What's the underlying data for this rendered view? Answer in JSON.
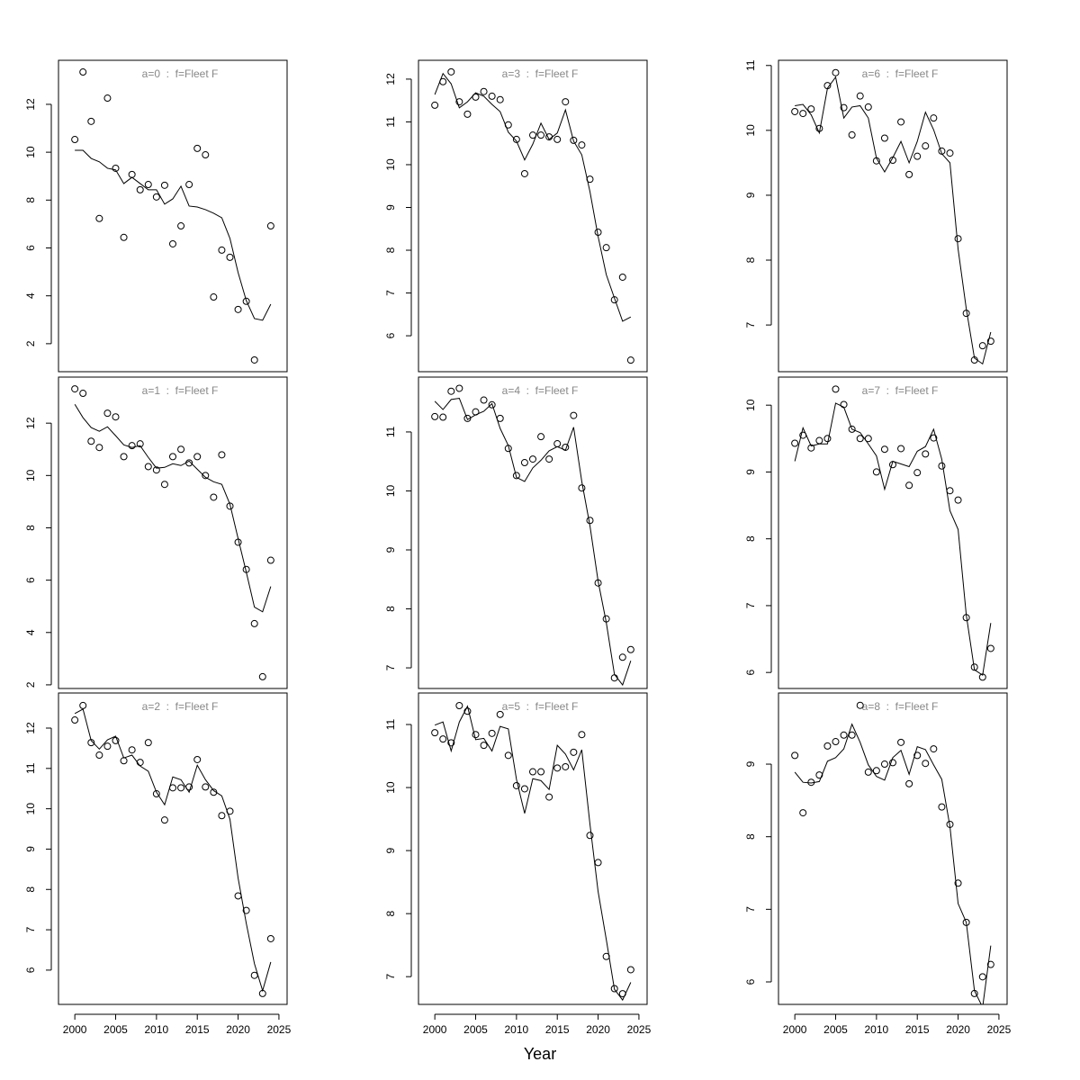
{
  "xlabel": "Year",
  "chart_data": [
    {
      "type": "line",
      "title": "a=0  :  f=Fleet F",
      "xlim": [
        1998,
        2026
      ],
      "ylim": [
        0.83,
        13.84
      ],
      "yticks": [
        2,
        4,
        6,
        8,
        10,
        12
      ],
      "x": [
        2000,
        2001,
        2002,
        2003,
        2004,
        2005,
        2006,
        2007,
        2008,
        2009,
        2010,
        2011,
        2012,
        2013,
        2014,
        2015,
        2016,
        2017,
        2018,
        2019,
        2020,
        2021,
        2022,
        2023,
        2024
      ],
      "series": [
        {
          "marker": "circle",
          "color": "#000000",
          "values": [
            10.53,
            13.35,
            11.29,
            7.23,
            12.26,
            9.33,
            6.44,
            9.07,
            8.43,
            8.65,
            8.13,
            8.62,
            6.17,
            6.92,
            8.65,
            10.16,
            9.89,
            3.95,
            5.91,
            5.61,
            3.43,
            3.77,
            1.32,
            null,
            6.92
          ]
        },
        {
          "marker": "none",
          "color": "#000000",
          "values": [
            10.08,
            10.08,
            9.74,
            9.6,
            9.33,
            9.26,
            8.69,
            8.95,
            8.69,
            8.43,
            8.43,
            7.83,
            8.05,
            8.58,
            7.75,
            7.71,
            7.6,
            7.45,
            7.26,
            6.4,
            4.97,
            3.8,
            3.05,
            2.98,
            3.65
          ]
        }
      ]
    },
    {
      "type": "line",
      "title": "a=1  :  f=Fleet F",
      "xlim": [
        1998,
        2026
      ],
      "ylim": [
        1.86,
        13.76
      ],
      "yticks": [
        2,
        4,
        6,
        8,
        10,
        12
      ],
      "x": [
        2000,
        2001,
        2002,
        2003,
        2004,
        2005,
        2006,
        2007,
        2008,
        2009,
        2010,
        2011,
        2012,
        2013,
        2014,
        2015,
        2016,
        2017,
        2018,
        2019,
        2020,
        2021,
        2022,
        2023,
        2024
      ],
      "series": [
        {
          "marker": "circle",
          "color": "#000000",
          "values": [
            13.31,
            13.14,
            11.31,
            11.07,
            12.38,
            12.24,
            10.72,
            11.14,
            11.21,
            10.34,
            10.21,
            9.66,
            10.72,
            11.0,
            10.48,
            10.72,
            10.0,
            9.17,
            10.79,
            8.83,
            7.45,
            6.41,
            4.34,
            2.31,
            6.76
          ]
        },
        {
          "marker": "none",
          "color": "#000000",
          "values": [
            12.72,
            12.21,
            11.83,
            11.69,
            11.86,
            11.52,
            11.17,
            11.07,
            11.14,
            10.69,
            10.28,
            10.31,
            10.45,
            10.38,
            10.55,
            10.24,
            9.93,
            9.76,
            9.66,
            8.9,
            7.59,
            6.31,
            4.97,
            4.79,
            5.76
          ]
        }
      ]
    },
    {
      "type": "line",
      "title": "a=2  :  f=Fleet F",
      "xlim": [
        1998,
        2026
      ],
      "ylim": [
        5.15,
        12.87
      ],
      "yticks": [
        6,
        7,
        8,
        9,
        10,
        11,
        12
      ],
      "xticks": [
        2000,
        2005,
        2010,
        2015,
        2020,
        2025
      ],
      "x": [
        2000,
        2001,
        2002,
        2003,
        2004,
        2005,
        2006,
        2007,
        2008,
        2009,
        2010,
        2011,
        2012,
        2013,
        2014,
        2015,
        2016,
        2017,
        2018,
        2019,
        2020,
        2021,
        2022,
        2023,
        2024
      ],
      "series": [
        {
          "marker": "circle",
          "color": "#000000",
          "values": [
            12.2,
            12.56,
            11.64,
            11.33,
            11.55,
            11.69,
            11.19,
            11.46,
            11.15,
            11.64,
            10.37,
            9.72,
            10.52,
            10.52,
            10.54,
            11.22,
            10.54,
            10.41,
            9.83,
            9.94,
            7.84,
            7.48,
            5.87,
            5.42,
            6.78
          ]
        },
        {
          "marker": "none",
          "color": "#000000",
          "values": [
            12.36,
            12.47,
            11.69,
            11.48,
            11.71,
            11.8,
            11.26,
            11.33,
            11.06,
            10.93,
            10.41,
            10.1,
            10.79,
            10.72,
            10.41,
            11.08,
            10.72,
            10.45,
            10.32,
            9.74,
            8.28,
            7.16,
            6.16,
            5.49,
            6.2
          ]
        }
      ]
    },
    {
      "type": "line",
      "title": "a=3  :  f=Fleet F",
      "xlim": [
        1998,
        2026
      ],
      "ylim": [
        5.16,
        12.44
      ],
      "yticks": [
        6,
        7,
        8,
        9,
        10,
        11,
        12
      ],
      "x": [
        2000,
        2001,
        2002,
        2003,
        2004,
        2005,
        2006,
        2007,
        2008,
        2009,
        2010,
        2011,
        2012,
        2013,
        2014,
        2015,
        2016,
        2017,
        2018,
        2019,
        2020,
        2021,
        2022,
        2023,
        2024
      ],
      "series": [
        {
          "marker": "circle",
          "color": "#000000",
          "values": [
            11.39,
            11.94,
            12.17,
            11.47,
            11.18,
            11.58,
            11.71,
            11.6,
            11.52,
            10.93,
            10.59,
            9.79,
            10.69,
            10.69,
            10.65,
            10.59,
            11.47,
            10.57,
            10.46,
            9.66,
            8.42,
            8.06,
            6.84,
            7.37,
            5.43
          ]
        },
        {
          "marker": "none",
          "color": "#000000",
          "values": [
            11.64,
            12.13,
            11.89,
            11.33,
            11.47,
            11.68,
            11.6,
            11.41,
            11.24,
            10.76,
            10.55,
            10.11,
            10.48,
            10.97,
            10.59,
            10.74,
            11.28,
            10.55,
            10.23,
            9.37,
            8.32,
            7.43,
            6.88,
            6.34,
            6.44
          ]
        }
      ]
    },
    {
      "type": "line",
      "title": "a=4  :  f=Fleet F",
      "xlim": [
        1998,
        2026
      ],
      "ylim": [
        6.65,
        11.93
      ],
      "yticks": [
        7,
        8,
        9,
        10,
        11
      ],
      "x": [
        2000,
        2001,
        2002,
        2003,
        2004,
        2005,
        2006,
        2007,
        2008,
        2009,
        2010,
        2011,
        2012,
        2013,
        2014,
        2015,
        2016,
        2017,
        2018,
        2019,
        2020,
        2021,
        2022,
        2023,
        2024
      ],
      "series": [
        {
          "marker": "circle",
          "color": "#000000",
          "values": [
            11.26,
            11.25,
            11.69,
            11.74,
            11.23,
            11.34,
            11.54,
            11.46,
            11.23,
            10.72,
            10.26,
            10.48,
            10.54,
            10.92,
            10.54,
            10.8,
            10.74,
            11.28,
            10.05,
            9.5,
            8.44,
            7.83,
            6.83,
            7.18,
            7.31
          ]
        },
        {
          "marker": "none",
          "color": "#000000",
          "values": [
            11.52,
            11.38,
            11.55,
            11.57,
            11.21,
            11.29,
            11.35,
            11.48,
            11.06,
            10.77,
            10.23,
            10.16,
            10.39,
            10.52,
            10.68,
            10.75,
            10.69,
            11.08,
            10.16,
            9.41,
            8.47,
            7.77,
            6.89,
            6.71,
            7.12
          ]
        }
      ]
    },
    {
      "type": "line",
      "title": "a=5  :  f=Fleet F",
      "xlim": [
        1998,
        2026
      ],
      "ylim": [
        6.56,
        11.5
      ],
      "yticks": [
        7,
        8,
        9,
        10,
        11
      ],
      "xticks": [
        2000,
        2005,
        2010,
        2015,
        2020,
        2025
      ],
      "x": [
        2000,
        2001,
        2002,
        2003,
        2004,
        2005,
        2006,
        2007,
        2008,
        2009,
        2010,
        2011,
        2012,
        2013,
        2014,
        2015,
        2016,
        2017,
        2018,
        2019,
        2020,
        2021,
        2022,
        2023,
        2024
      ],
      "series": [
        {
          "marker": "circle",
          "color": "#000000",
          "values": [
            10.87,
            10.77,
            10.71,
            11.3,
            11.21,
            10.84,
            10.67,
            10.86,
            11.16,
            10.51,
            10.03,
            9.98,
            10.25,
            10.25,
            9.85,
            10.31,
            10.33,
            10.56,
            10.84,
            9.24,
            8.81,
            7.32,
            6.81,
            6.73,
            7.11
          ]
        },
        {
          "marker": "none",
          "color": "#000000",
          "values": [
            10.99,
            11.04,
            10.58,
            11.04,
            11.29,
            10.76,
            10.78,
            10.58,
            10.97,
            10.93,
            10.13,
            9.59,
            10.14,
            10.11,
            9.97,
            10.67,
            10.53,
            10.28,
            10.6,
            9.42,
            8.35,
            7.59,
            6.8,
            6.63,
            6.91
          ]
        }
      ]
    },
    {
      "type": "line",
      "title": "a=6  :  f=Fleet F",
      "xlim": [
        1998,
        2026
      ],
      "ylim": [
        6.28,
        11.08
      ],
      "yticks": [
        7,
        8,
        9,
        10,
        11
      ],
      "x": [
        2000,
        2001,
        2002,
        2003,
        2004,
        2005,
        2006,
        2007,
        2008,
        2009,
        2010,
        2011,
        2012,
        2013,
        2014,
        2015,
        2016,
        2017,
        2018,
        2019,
        2020,
        2021,
        2022,
        2023,
        2024
      ],
      "series": [
        {
          "marker": "circle",
          "color": "#000000",
          "values": [
            10.29,
            10.26,
            10.33,
            10.03,
            10.69,
            10.89,
            10.35,
            9.93,
            10.53,
            10.36,
            9.53,
            9.88,
            9.54,
            10.13,
            9.32,
            9.6,
            9.76,
            10.19,
            9.68,
            9.65,
            8.33,
            7.18,
            6.46,
            6.68,
            6.75
          ]
        },
        {
          "marker": "none",
          "color": "#000000",
          "values": [
            10.38,
            10.4,
            10.24,
            9.96,
            10.65,
            10.82,
            10.19,
            10.36,
            10.38,
            10.19,
            9.57,
            9.36,
            9.58,
            9.83,
            9.5,
            9.83,
            10.28,
            10.01,
            9.64,
            9.5,
            8.17,
            7.25,
            6.49,
            6.4,
            6.89
          ]
        }
      ]
    },
    {
      "type": "line",
      "title": "a=7  :  f=Fleet F",
      "xlim": [
        1998,
        2026
      ],
      "ylim": [
        5.76,
        10.42
      ],
      "yticks": [
        6,
        7,
        8,
        9,
        10
      ],
      "x": [
        2000,
        2001,
        2002,
        2003,
        2004,
        2005,
        2006,
        2007,
        2008,
        2009,
        2010,
        2011,
        2012,
        2013,
        2014,
        2015,
        2016,
        2017,
        2018,
        2019,
        2020,
        2021,
        2022,
        2023,
        2024
      ],
      "series": [
        {
          "marker": "circle",
          "color": "#000000",
          "values": [
            9.43,
            9.55,
            9.36,
            9.47,
            9.5,
            10.24,
            10.01,
            9.64,
            9.5,
            9.5,
            9.0,
            9.34,
            9.11,
            9.35,
            8.8,
            8.99,
            9.27,
            9.51,
            9.09,
            8.72,
            8.58,
            6.82,
            6.08,
            5.93,
            6.36
          ]
        },
        {
          "marker": "none",
          "color": "#000000",
          "values": [
            9.16,
            9.66,
            9.39,
            9.42,
            9.42,
            10.03,
            9.97,
            9.64,
            9.59,
            9.42,
            9.24,
            8.74,
            9.16,
            9.12,
            9.08,
            9.31,
            9.38,
            9.64,
            9.19,
            8.42,
            8.14,
            6.86,
            6.04,
            5.96,
            6.74
          ]
        }
      ]
    },
    {
      "type": "line",
      "title": "a=8  :  f=Fleet F",
      "xlim": [
        1998,
        2026
      ],
      "ylim": [
        5.69,
        9.98
      ],
      "yticks": [
        6,
        7,
        8,
        9
      ],
      "xticks": [
        2000,
        2005,
        2010,
        2015,
        2020,
        2025
      ],
      "x": [
        2000,
        2001,
        2002,
        2003,
        2004,
        2005,
        2006,
        2007,
        2008,
        2009,
        2010,
        2011,
        2012,
        2013,
        2014,
        2015,
        2016,
        2017,
        2018,
        2019,
        2020,
        2021,
        2022,
        2023,
        2024
      ],
      "series": [
        {
          "marker": "circle",
          "color": "#000000",
          "values": [
            9.12,
            8.33,
            8.75,
            8.85,
            9.25,
            9.31,
            9.4,
            9.4,
            9.81,
            8.89,
            8.91,
            9.0,
            9.02,
            9.3,
            8.73,
            9.12,
            9.01,
            9.21,
            8.41,
            8.17,
            7.36,
            6.82,
            5.84,
            6.07,
            6.24
          ]
        },
        {
          "marker": "none",
          "color": "#000000",
          "values": [
            8.89,
            8.75,
            8.74,
            8.76,
            9.04,
            9.09,
            9.21,
            9.55,
            9.3,
            8.99,
            8.83,
            8.78,
            9.09,
            9.19,
            8.86,
            9.24,
            9.2,
            8.99,
            8.79,
            8.14,
            7.08,
            6.82,
            5.88,
            5.65,
            6.5
          ]
        }
      ]
    }
  ]
}
